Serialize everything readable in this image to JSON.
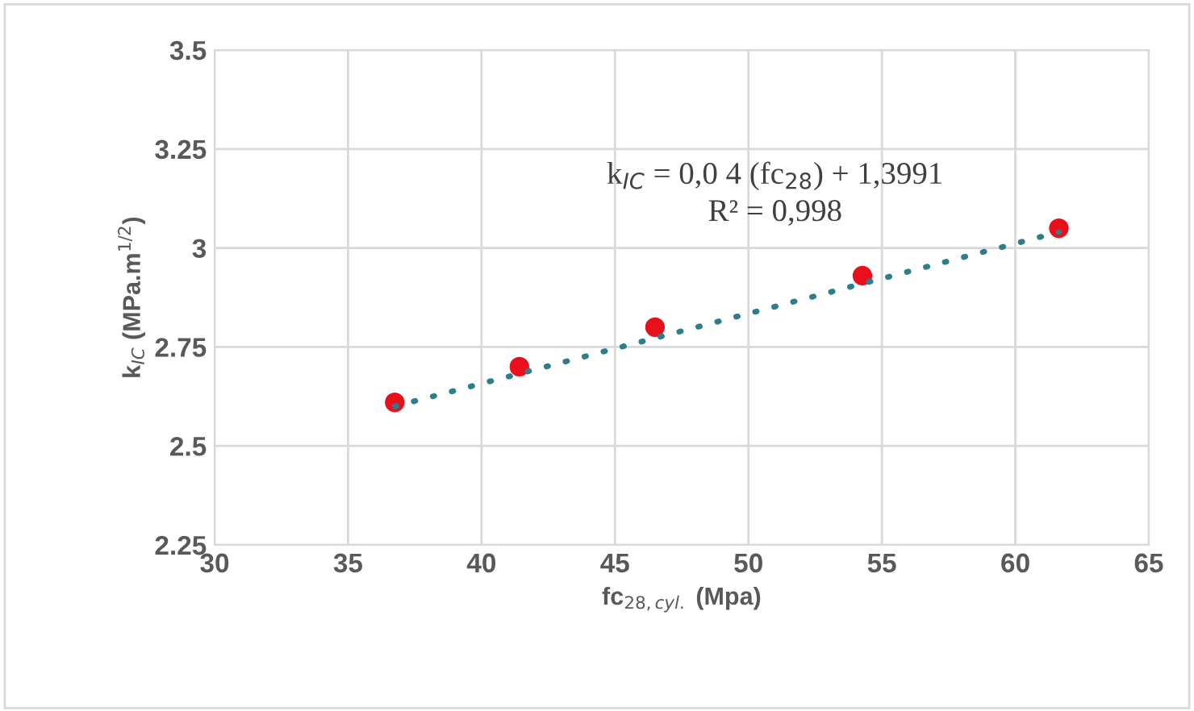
{
  "chart_data": {
    "type": "scatter",
    "xlabel": "fc$_{28,cyl.}$ (Mpa)",
    "ylabel": "k$_{IC}$ (MPa.m$^{1/2}$)",
    "series": [
      {
        "color": "#e8101c",
        "marker": "circle",
        "x": [
          36.75,
          41.42,
          46.5,
          54.27,
          61.63
        ],
        "values": [
          2.61,
          2.7,
          2.8,
          2.93,
          3.05
        ]
      },
      {
        "type": "line",
        "color": "#2e7d8c",
        "line_style": "dotted",
        "marker": "none",
        "x": [
          36.75,
          61.63
        ],
        "values": [
          2.6,
          3.04
        ]
      }
    ],
    "annotations": [
      "k$_{IC}$ = 0,0 4 (fc$_{28}$) + 1,3991",
      "R² = 0,998"
    ],
    "xlim": [
      30,
      65
    ],
    "xticks": [
      30,
      35,
      40,
      45,
      50,
      55,
      60,
      65
    ],
    "ylim": [
      2.25,
      3.5
    ],
    "yticks": [
      2.25,
      2.5,
      2.75,
      3,
      3.25,
      3.5
    ],
    "grid": true
  }
}
